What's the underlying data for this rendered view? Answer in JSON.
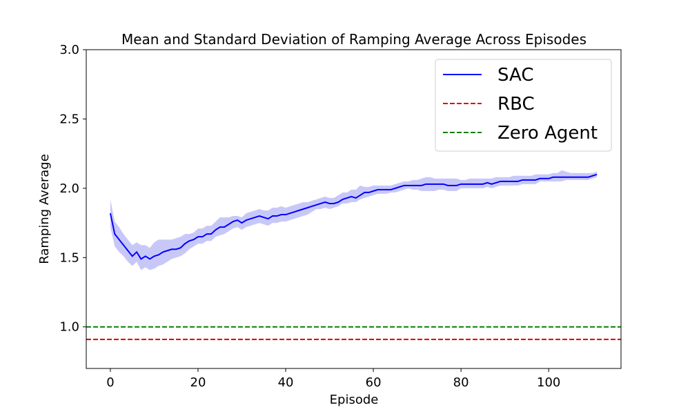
{
  "chart_data": {
    "type": "line",
    "title": "Mean and Standard Deviation of Ramping Average Across Episodes",
    "xlabel": "Episode",
    "ylabel": "Ramping Average",
    "xlim": [
      -5.5,
      116.5
    ],
    "ylim": [
      0.7,
      3.0
    ],
    "xticks": [
      0,
      20,
      40,
      60,
      80,
      100
    ],
    "yticks": [
      1.0,
      1.5,
      2.0,
      2.5,
      3.0
    ],
    "ytick_labels": [
      "1.0",
      "1.5",
      "2.0",
      "2.5",
      "3.0"
    ],
    "grid": false,
    "legend_position": "top-right",
    "series": [
      {
        "name": "SAC",
        "style": "solid",
        "color": "#0000ff",
        "band_color": "#c8c8f8",
        "x": [
          0,
          1,
          2,
          3,
          4,
          5,
          6,
          7,
          8,
          9,
          10,
          11,
          12,
          13,
          14,
          15,
          16,
          17,
          18,
          19,
          20,
          21,
          22,
          23,
          24,
          25,
          26,
          27,
          28,
          29,
          30,
          31,
          32,
          33,
          34,
          35,
          36,
          37,
          38,
          39,
          40,
          41,
          42,
          43,
          44,
          45,
          46,
          47,
          48,
          49,
          50,
          51,
          52,
          53,
          54,
          55,
          56,
          57,
          58,
          59,
          60,
          61,
          62,
          63,
          64,
          65,
          66,
          67,
          68,
          69,
          70,
          71,
          72,
          73,
          74,
          75,
          76,
          77,
          78,
          79,
          80,
          81,
          82,
          83,
          84,
          85,
          86,
          87,
          88,
          89,
          90,
          91,
          92,
          93,
          94,
          95,
          96,
          97,
          98,
          99,
          100,
          101,
          102,
          103,
          104,
          105,
          106,
          107,
          108,
          109,
          110,
          111
        ],
        "values": [
          1.82,
          1.67,
          1.63,
          1.59,
          1.55,
          1.51,
          1.54,
          1.49,
          1.51,
          1.49,
          1.51,
          1.52,
          1.54,
          1.55,
          1.56,
          1.56,
          1.57,
          1.6,
          1.62,
          1.63,
          1.65,
          1.65,
          1.67,
          1.67,
          1.7,
          1.72,
          1.72,
          1.74,
          1.76,
          1.77,
          1.75,
          1.77,
          1.78,
          1.79,
          1.8,
          1.79,
          1.78,
          1.8,
          1.8,
          1.81,
          1.81,
          1.82,
          1.83,
          1.84,
          1.85,
          1.86,
          1.87,
          1.88,
          1.89,
          1.9,
          1.89,
          1.89,
          1.9,
          1.92,
          1.93,
          1.94,
          1.93,
          1.95,
          1.97,
          1.97,
          1.98,
          1.99,
          1.99,
          1.99,
          1.99,
          2.0,
          2.01,
          2.02,
          2.02,
          2.02,
          2.02,
          2.02,
          2.03,
          2.03,
          2.03,
          2.03,
          2.03,
          2.02,
          2.02,
          2.02,
          2.03,
          2.03,
          2.03,
          2.03,
          2.03,
          2.03,
          2.04,
          2.03,
          2.04,
          2.05,
          2.05,
          2.05,
          2.05,
          2.05,
          2.06,
          2.06,
          2.06,
          2.06,
          2.07,
          2.07,
          2.07,
          2.08,
          2.08,
          2.08,
          2.08,
          2.08,
          2.08,
          2.08,
          2.08,
          2.08,
          2.09,
          2.1
        ],
        "upper": [
          1.92,
          1.76,
          1.72,
          1.67,
          1.63,
          1.59,
          1.61,
          1.59,
          1.59,
          1.57,
          1.61,
          1.63,
          1.63,
          1.63,
          1.63,
          1.64,
          1.65,
          1.67,
          1.67,
          1.68,
          1.71,
          1.71,
          1.73,
          1.73,
          1.76,
          1.79,
          1.79,
          1.79,
          1.8,
          1.8,
          1.79,
          1.82,
          1.83,
          1.84,
          1.85,
          1.84,
          1.84,
          1.86,
          1.86,
          1.87,
          1.86,
          1.87,
          1.88,
          1.89,
          1.9,
          1.9,
          1.91,
          1.92,
          1.93,
          1.94,
          1.93,
          1.93,
          1.95,
          1.97,
          1.97,
          1.99,
          1.99,
          2.02,
          2.01,
          2.01,
          2.02,
          2.02,
          2.02,
          2.02,
          2.02,
          2.03,
          2.04,
          2.05,
          2.05,
          2.06,
          2.06,
          2.07,
          2.08,
          2.08,
          2.07,
          2.07,
          2.07,
          2.07,
          2.07,
          2.07,
          2.06,
          2.06,
          2.07,
          2.07,
          2.07,
          2.07,
          2.07,
          2.07,
          2.08,
          2.08,
          2.08,
          2.08,
          2.09,
          2.09,
          2.09,
          2.09,
          2.09,
          2.1,
          2.1,
          2.1,
          2.1,
          2.11,
          2.11,
          2.13,
          2.12,
          2.11,
          2.11,
          2.11,
          2.11,
          2.11,
          2.11,
          2.12
        ],
        "lower": [
          1.72,
          1.58,
          1.54,
          1.51,
          1.47,
          1.44,
          1.47,
          1.41,
          1.43,
          1.41,
          1.42,
          1.44,
          1.45,
          1.47,
          1.49,
          1.5,
          1.51,
          1.53,
          1.56,
          1.58,
          1.6,
          1.6,
          1.62,
          1.62,
          1.65,
          1.66,
          1.67,
          1.69,
          1.71,
          1.72,
          1.7,
          1.72,
          1.73,
          1.74,
          1.75,
          1.74,
          1.73,
          1.75,
          1.75,
          1.76,
          1.76,
          1.77,
          1.78,
          1.79,
          1.8,
          1.81,
          1.83,
          1.85,
          1.85,
          1.86,
          1.85,
          1.86,
          1.87,
          1.89,
          1.89,
          1.9,
          1.9,
          1.92,
          1.93,
          1.94,
          1.95,
          1.96,
          1.96,
          1.96,
          1.97,
          1.97,
          1.98,
          1.99,
          2.0,
          1.99,
          1.99,
          1.98,
          1.98,
          1.98,
          1.98,
          1.99,
          1.99,
          1.98,
          1.98,
          1.98,
          2.0,
          2.0,
          2.0,
          2.0,
          2.0,
          2.0,
          2.01,
          2.0,
          2.01,
          2.02,
          2.02,
          2.02,
          2.02,
          2.02,
          2.03,
          2.03,
          2.03,
          2.03,
          2.05,
          2.05,
          2.05,
          2.05,
          2.05,
          2.05,
          2.06,
          2.06,
          2.06,
          2.06,
          2.06,
          2.06,
          2.07,
          2.08
        ]
      },
      {
        "name": "RBC",
        "style": "dashed",
        "color": "#dd0000",
        "constant": 0.91
      },
      {
        "name": "Zero Agent",
        "style": "dashed",
        "color": "#008000",
        "constant": 1.0
      }
    ]
  }
}
